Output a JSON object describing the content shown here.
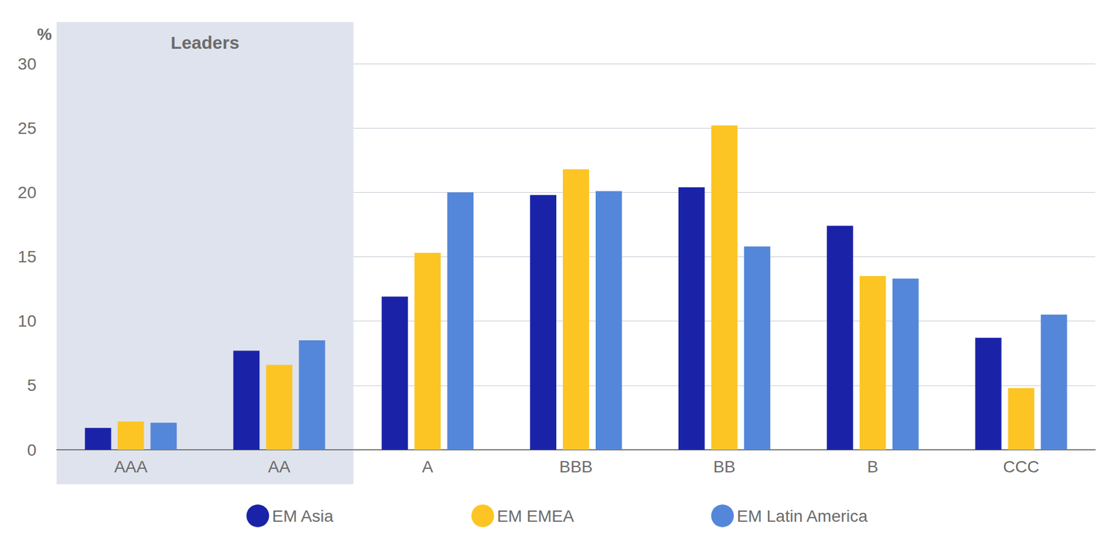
{
  "chart_data": {
    "type": "bar",
    "y_label": "%",
    "categories": [
      "AAA",
      "AA",
      "A",
      "BBB",
      "BB",
      "B",
      "CCC"
    ],
    "series": [
      {
        "name": "EM Asia",
        "color": "#1a23a8",
        "values": [
          1.7,
          7.7,
          11.9,
          19.8,
          20.4,
          17.4,
          8.7
        ]
      },
      {
        "name": "EM EMEA",
        "color": "#fcc524",
        "values": [
          2.2,
          6.6,
          15.3,
          21.8,
          25.2,
          13.5,
          4.8
        ]
      },
      {
        "name": "EM Latin America",
        "color": "#5487d9",
        "values": [
          2.1,
          8.5,
          20.0,
          20.1,
          15.8,
          13.3,
          10.5
        ]
      }
    ],
    "annotations": [
      {
        "text": "Leaders",
        "categories": [
          "AAA",
          "AA"
        ]
      }
    ],
    "ylim": [
      0,
      30
    ],
    "yticks": [
      0,
      5,
      10,
      15,
      20,
      25,
      30
    ],
    "grid": true,
    "legend": "bottom"
  }
}
